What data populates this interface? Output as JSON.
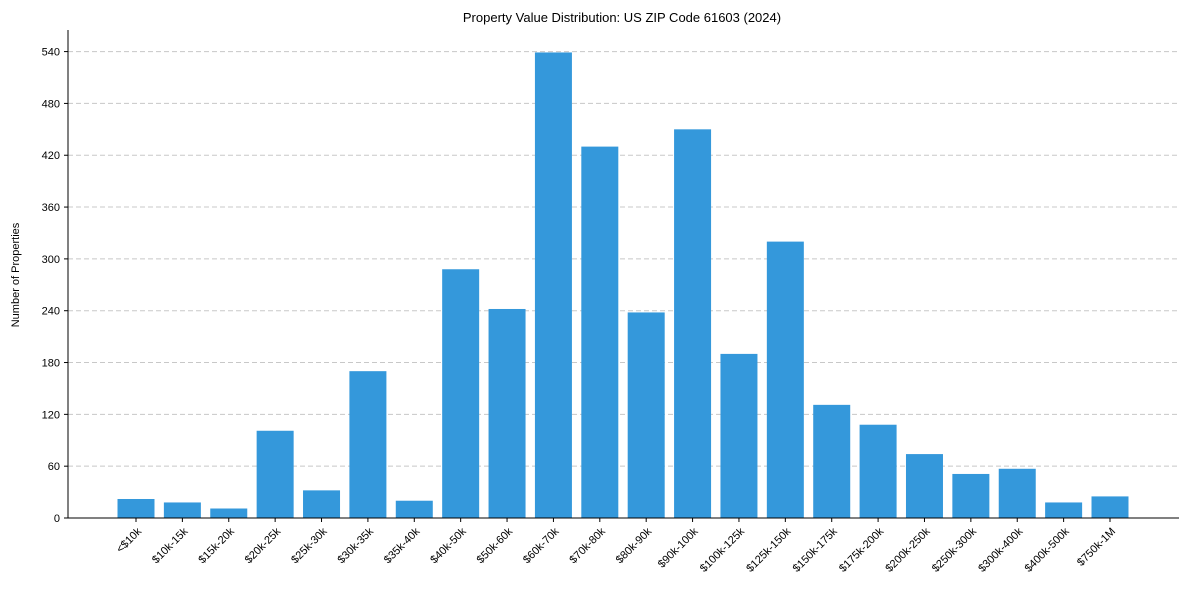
{
  "chart_data": {
    "type": "bar",
    "title": "Property Value Distribution: US ZIP Code 61603 (2024)",
    "xlabel": "",
    "ylabel": "Number of Properties",
    "categories": [
      "<$10k",
      "$10k-15k",
      "$15k-20k",
      "$20k-25k",
      "$25k-30k",
      "$30k-35k",
      "$35k-40k",
      "$40k-50k",
      "$50k-60k",
      "$60k-70k",
      "$70k-80k",
      "$80k-90k",
      "$90k-100k",
      "$100k-125k",
      "$125k-150k",
      "$150k-175k",
      "$175k-200k",
      "$200k-250k",
      "$250k-300k",
      "$300k-400k",
      "$400k-500k",
      "$750k-1M"
    ],
    "values": [
      22,
      18,
      11,
      101,
      32,
      170,
      20,
      288,
      242,
      539,
      430,
      238,
      450,
      190,
      320,
      131,
      108,
      74,
      51,
      57,
      18,
      25
    ],
    "ylim": [
      0,
      565
    ],
    "yticks": [
      0,
      60,
      120,
      180,
      240,
      300,
      360,
      420,
      480,
      540
    ],
    "grid": "y-dashed",
    "bar_color": "#3498db"
  }
}
